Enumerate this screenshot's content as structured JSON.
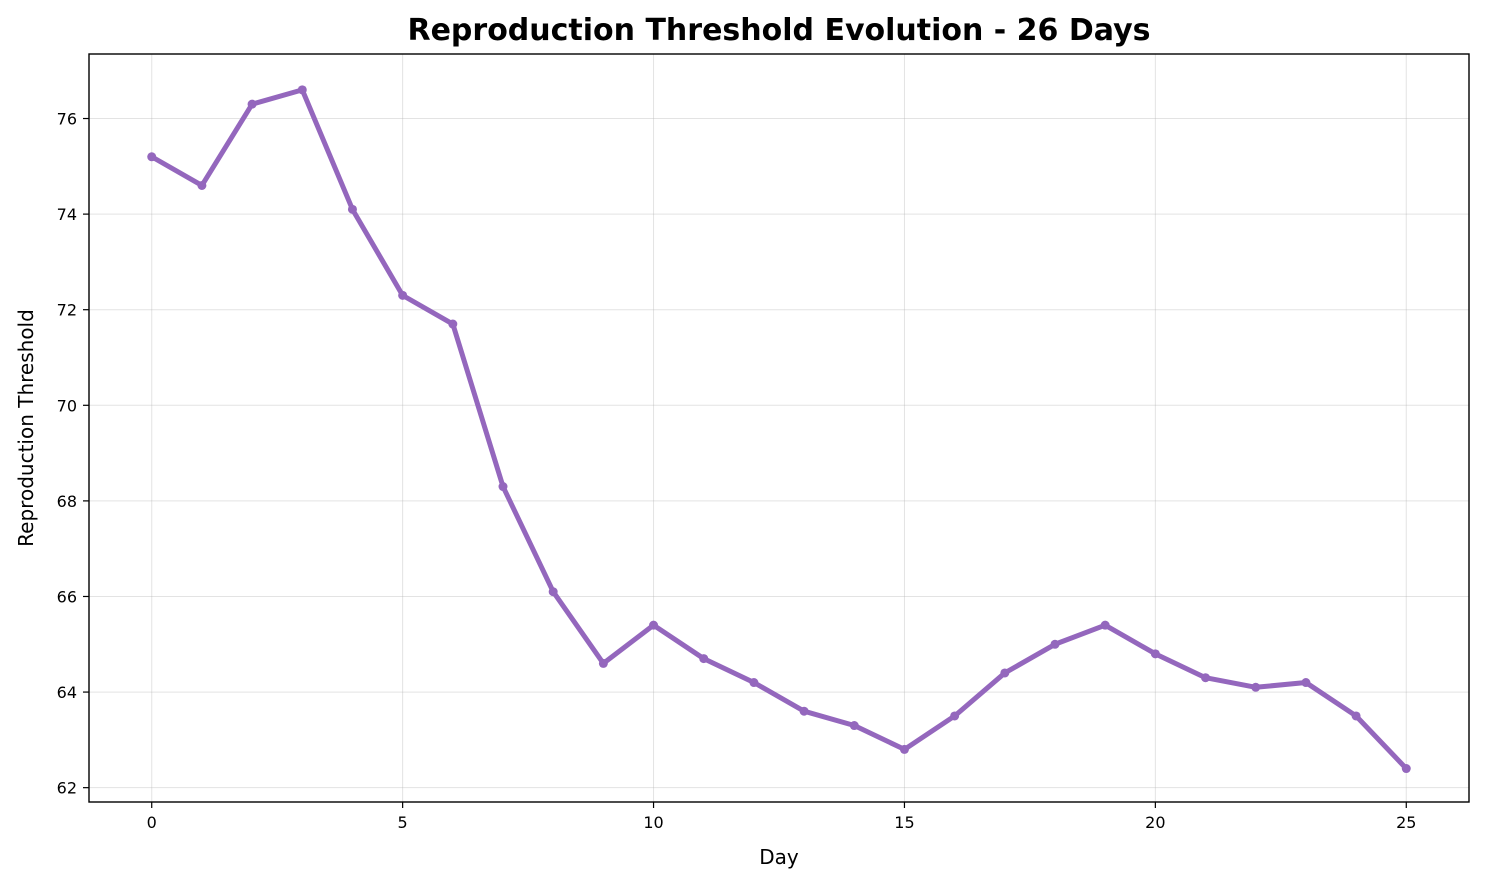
{
  "chart_data": {
    "type": "line",
    "title": "Reproduction Threshold Evolution - 26 Days",
    "xlabel": "Day",
    "ylabel": "Reproduction Threshold",
    "xlim": [
      -1.25,
      26.25
    ],
    "ylim": [
      61.7,
      77.35
    ],
    "xticks": [
      0,
      5,
      10,
      15,
      20,
      25
    ],
    "yticks": [
      62,
      64,
      66,
      68,
      70,
      72,
      74,
      76
    ],
    "grid": true,
    "legend": null,
    "series": [
      {
        "color": "#9467bd",
        "marker": "circle",
        "x": [
          0,
          1,
          2,
          3,
          4,
          5,
          6,
          7,
          8,
          9,
          10,
          11,
          12,
          13,
          14,
          15,
          16,
          17,
          18,
          19,
          20,
          21,
          22,
          23,
          24,
          25
        ],
        "values": [
          75.2,
          74.6,
          76.3,
          76.6,
          74.1,
          72.3,
          71.7,
          68.3,
          66.1,
          64.6,
          65.4,
          64.7,
          64.2,
          63.6,
          63.3,
          62.8,
          63.5,
          64.4,
          65.0,
          65.4,
          64.8,
          64.3,
          64.1,
          64.2,
          63.5,
          62.4
        ]
      }
    ]
  }
}
